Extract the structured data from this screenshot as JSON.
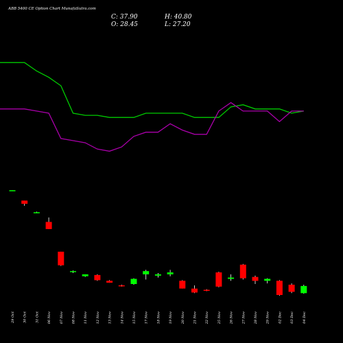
{
  "header": {
    "title": "ABB 5400  CE Option  Chart MunafaSutra.com",
    "close_label": "C: 37.90",
    "high_label": "H: 40.80",
    "open_label": "O: 28.45",
    "low_label": "L: 27.20"
  },
  "colors": {
    "background": "#000000",
    "up": "#00ff00",
    "down": "#ff0000",
    "line_green": "#00cc00",
    "line_purple": "#aa00aa",
    "wick": "#ffffff"
  },
  "chart_data": [
    {
      "type": "line",
      "title": "",
      "series": [
        {
          "values": [
            95,
            95,
            91,
            88,
            84,
            71,
            70,
            70,
            69,
            69,
            69,
            71,
            71,
            71,
            71,
            69,
            69,
            69,
            74,
            75,
            73,
            73,
            73,
            71,
            72
          ]
        },
        {
          "values": [
            73,
            73,
            72,
            71,
            59,
            58,
            57,
            54,
            53,
            55,
            60,
            62,
            62,
            66,
            63,
            61,
            61,
            72,
            76,
            72,
            72,
            72,
            67,
            72,
            72
          ]
        }
      ],
      "ylim": [
        45,
        110
      ]
    },
    {
      "type": "candlestick",
      "title": "",
      "categories": [
        "29 Oct",
        "30 Oct",
        "31 Oct",
        "06 Nov",
        "07 Nov",
        "08 Nov",
        "11 Nov",
        "12 Nov",
        "13 Nov",
        "14 Nov",
        "15 Nov",
        "17 Nov",
        "18 Nov",
        "19 Nov",
        "20 Nov",
        "21 Nov",
        "22 Nov",
        "25 Nov",
        "26 Nov",
        "27 Nov",
        "28 Nov",
        "29 Nov",
        "02 Dec",
        "03 Dec",
        "04 Dec"
      ],
      "open": [
        230,
        215,
        197,
        182,
        136,
        105,
        98,
        100,
        91,
        84,
        86,
        101,
        99,
        101,
        91,
        79,
        77,
        104,
        94,
        116,
        97,
        91,
        91,
        85,
        72
      ],
      "close": [
        231,
        210,
        197,
        171,
        115,
        106,
        101,
        92,
        88,
        83,
        94,
        106,
        101,
        104,
        79,
        73,
        76,
        82,
        96,
        95,
        91,
        94,
        69,
        74,
        83
      ],
      "high": [
        231,
        215,
        198,
        189,
        136,
        107,
        101,
        101,
        92,
        85,
        95,
        108,
        103,
        108,
        92,
        84,
        78,
        105,
        101,
        117,
        99,
        95,
        92,
        87,
        85
      ],
      "low": [
        230,
        207,
        196,
        171,
        114,
        103,
        97,
        91,
        88,
        82,
        85,
        93,
        96,
        98,
        79,
        72,
        75,
        81,
        91,
        93,
        86,
        87,
        68,
        72,
        71
      ],
      "ylim": [
        50,
        260
      ]
    }
  ]
}
